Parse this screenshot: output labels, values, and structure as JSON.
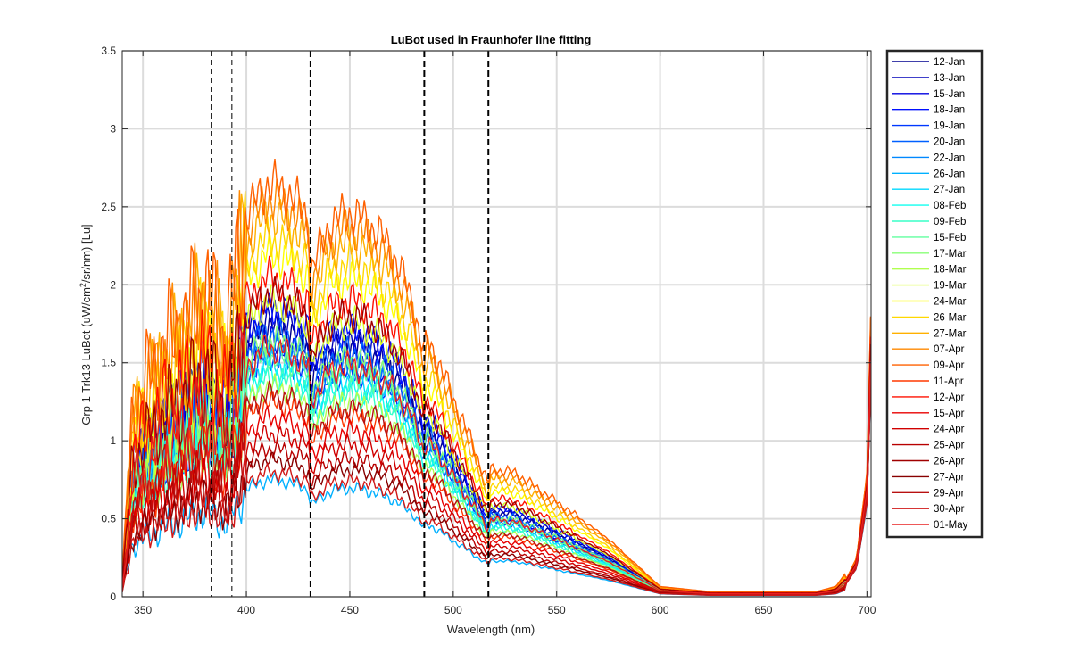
{
  "chart_data": {
    "type": "line",
    "title": "LuBot used in Fraunhofer line fitting",
    "xlabel": "Wavelength (nm)",
    "ylabel_parts": [
      "Grp 1 Trk13 LuBot (uW/cm",
      "2",
      "/sr/nm) [Lu]"
    ],
    "xlim": [
      340,
      702
    ],
    "ylim": [
      0,
      3.5
    ],
    "xticks": [
      350,
      400,
      450,
      500,
      550,
      600,
      650,
      700
    ],
    "yticks": [
      0,
      0.5,
      1,
      1.5,
      2,
      2.5,
      3,
      3.5
    ],
    "xtick_labels": [
      "350",
      "400",
      "450",
      "500",
      "550",
      "600",
      "650",
      "700"
    ],
    "ytick_labels": [
      "0",
      "0.5",
      "1",
      "1.5",
      "2",
      "2.5",
      "3",
      "3.5"
    ],
    "grid": true,
    "legend_position": "outside-right",
    "fraunhofer_lines": [
      {
        "x": 383,
        "style": "thin-dashed"
      },
      {
        "x": 393,
        "style": "thin-dashed"
      },
      {
        "x": 431,
        "style": "bold-dashed"
      },
      {
        "x": 486,
        "style": "bold-dashed"
      },
      {
        "x": 517,
        "style": "bold-dashed"
      }
    ],
    "profile_wavelengths": [
      340,
      345,
      350,
      360,
      370,
      380,
      390,
      400,
      410,
      420,
      430,
      431,
      440,
      450,
      460,
      470,
      480,
      486,
      487,
      490,
      500,
      510,
      517,
      518,
      530,
      550,
      575,
      600,
      625,
      650,
      675,
      685,
      690,
      695,
      700,
      702
    ],
    "series": [
      {
        "name": "12-Jan",
        "color": "#00008f",
        "peak": 1.75
      },
      {
        "name": "13-Jan",
        "color": "#0000b8",
        "peak": 1.8
      },
      {
        "name": "15-Jan",
        "color": "#0000e0",
        "peak": 1.65
      },
      {
        "name": "18-Jan",
        "color": "#0010ff",
        "peak": 1.85
      },
      {
        "name": "19-Jan",
        "color": "#0038ff",
        "peak": 1.55
      },
      {
        "name": "20-Jan",
        "color": "#0060ff",
        "peak": 1.7
      },
      {
        "name": "22-Jan",
        "color": "#0088ff",
        "peak": 1.6
      },
      {
        "name": "26-Jan",
        "color": "#00b0ff",
        "peak": 0.75
      },
      {
        "name": "27-Jan",
        "color": "#00d8ff",
        "peak": 1.5
      },
      {
        "name": "08-Feb",
        "color": "#10ffef",
        "peak": 1.45
      },
      {
        "name": "09-Feb",
        "color": "#38ffc7",
        "peak": 1.4
      },
      {
        "name": "15-Feb",
        "color": "#60ff9f",
        "peak": 1.55
      },
      {
        "name": "17-Mar",
        "color": "#88ff77",
        "peak": 1.65
      },
      {
        "name": "18-Mar",
        "color": "#b0ff4f",
        "peak": 1.35
      },
      {
        "name": "19-Mar",
        "color": "#d8ff27",
        "peak": 1.9
      },
      {
        "name": "24-Mar",
        "color": "#ffff00",
        "peak": 2.2
      },
      {
        "name": "26-Mar",
        "color": "#ffd800",
        "peak": 2.3
      },
      {
        "name": "27-Mar",
        "color": "#ffb000",
        "peak": 2.45
      },
      {
        "name": "07-Apr",
        "color": "#ff8800",
        "peak": 2.55
      },
      {
        "name": "09-Apr",
        "color": "#ff6000",
        "peak": 2.65
      },
      {
        "name": "11-Apr",
        "color": "#ff3800",
        "peak": 1.25
      },
      {
        "name": "12-Apr",
        "color": "#ff1000",
        "peak": 2.05
      },
      {
        "name": "15-Apr",
        "color": "#e80000",
        "peak": 1.15
      },
      {
        "name": "24-Apr",
        "color": "#d00000",
        "peak": 1.05
      },
      {
        "name": "25-Apr",
        "color": "#b80000",
        "peak": 0.95
      },
      {
        "name": "26-Apr",
        "color": "#a00000",
        "peak": 1.95
      },
      {
        "name": "27-Apr",
        "color": "#880000",
        "peak": 0.88
      },
      {
        "name": "29-Apr",
        "color": "#b81010",
        "peak": 1.3
      },
      {
        "name": "30-Apr",
        "color": "#d01818",
        "peak": 0.8
      },
      {
        "name": "01-May",
        "color": "#e82020",
        "peak": 1.6
      }
    ]
  }
}
